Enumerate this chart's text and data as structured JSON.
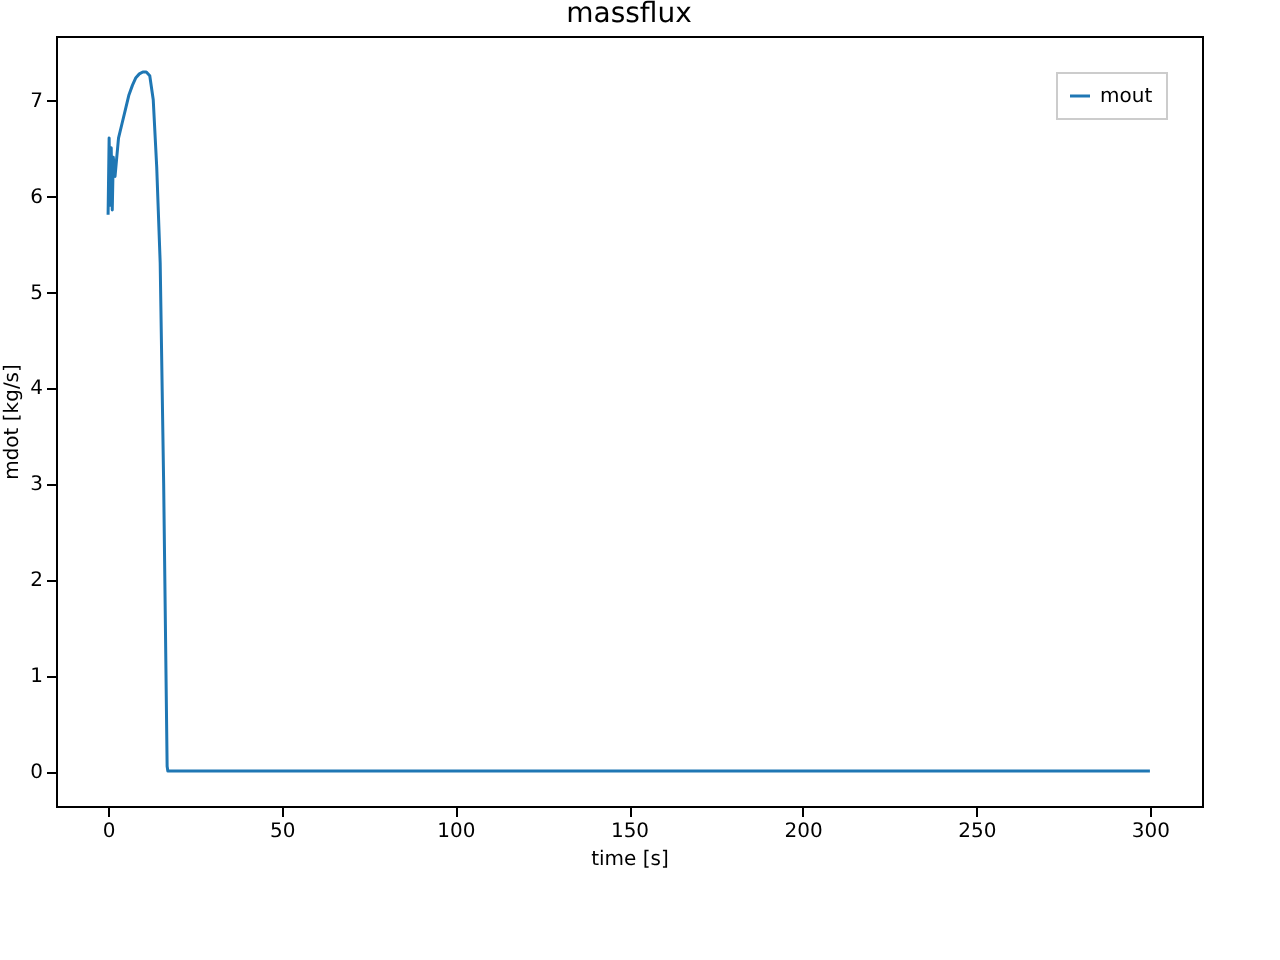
{
  "chart_data": {
    "type": "line",
    "title": "massflux",
    "xlabel": "time [s]",
    "ylabel": "mdot [kg/s]",
    "x": [
      0,
      0.3,
      0.6,
      0.9,
      1.2,
      1.5,
      2,
      3,
      4,
      5,
      6,
      7,
      8,
      9,
      10,
      11,
      12,
      13,
      14,
      15,
      16,
      17,
      17.2,
      300
    ],
    "series": [
      {
        "name": "mout",
        "color": "#1f77b4",
        "values": [
          5.8,
          6.6,
          5.9,
          6.5,
          5.85,
          6.4,
          6.2,
          6.6,
          6.75,
          6.9,
          7.05,
          7.15,
          7.23,
          7.27,
          7.29,
          7.29,
          7.25,
          7.0,
          6.3,
          5.3,
          3.0,
          0.05,
          0,
          0
        ]
      }
    ],
    "xlim": [
      -15,
      315
    ],
    "ylim": [
      -0.365,
      7.665
    ],
    "xticks": [
      0,
      50,
      100,
      150,
      200,
      250,
      300
    ],
    "yticks": [
      0,
      1,
      2,
      3,
      4,
      5,
      6,
      7
    ],
    "legend": "top right",
    "grid": false,
    "line_style": "solid"
  }
}
